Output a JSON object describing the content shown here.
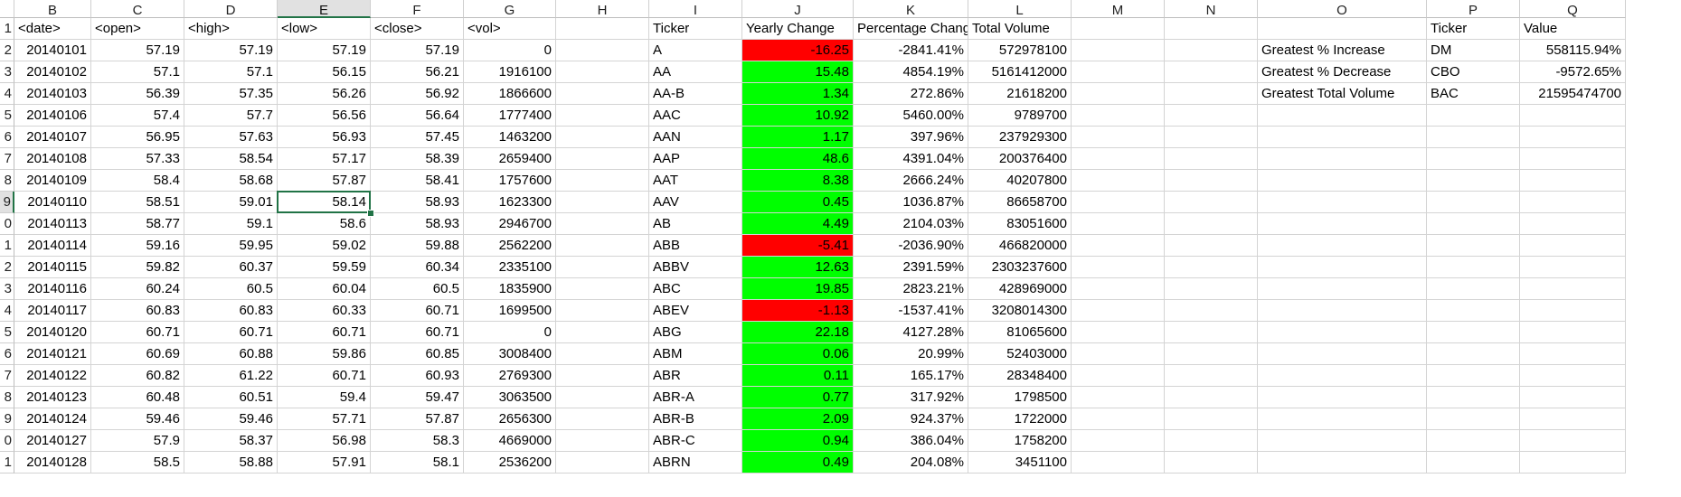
{
  "columns": [
    "B",
    "C",
    "D",
    "E",
    "F",
    "G",
    "H",
    "I",
    "J",
    "K",
    "L",
    "M",
    "N",
    "O",
    "P",
    "Q"
  ],
  "selected_column": "E",
  "selected_row": "9",
  "row_numbers": [
    "1",
    "2",
    "3",
    "4",
    "5",
    "6",
    "7",
    "8",
    "9",
    "0",
    "1",
    "2",
    "3",
    "4",
    "5",
    "6",
    "7",
    "8",
    "9",
    "0",
    "1"
  ],
  "header_row": [
    "<date>",
    "<open>",
    "<high>",
    "<low>",
    "<close>",
    "<vol>",
    "",
    "Ticker",
    "Yearly Change",
    "Percentage Change",
    "Total Volume",
    "",
    "",
    "",
    "Ticker",
    "Value"
  ],
  "stock_rows": [
    [
      "20140101",
      "57.19",
      "57.19",
      "57.19",
      "57.19",
      "0"
    ],
    [
      "20140102",
      "57.1",
      "57.1",
      "56.15",
      "56.21",
      "1916100"
    ],
    [
      "20140103",
      "56.39",
      "57.35",
      "56.26",
      "56.92",
      "1866600"
    ],
    [
      "20140106",
      "57.4",
      "57.7",
      "56.56",
      "56.64",
      "1777400"
    ],
    [
      "20140107",
      "56.95",
      "57.63",
      "56.93",
      "57.45",
      "1463200"
    ],
    [
      "20140108",
      "57.33",
      "58.54",
      "57.17",
      "58.39",
      "2659400"
    ],
    [
      "20140109",
      "58.4",
      "58.68",
      "57.87",
      "58.41",
      "1757600"
    ],
    [
      "20140110",
      "58.51",
      "59.01",
      "58.14",
      "58.93",
      "1623300"
    ],
    [
      "20140113",
      "58.77",
      "59.1",
      "58.6",
      "58.93",
      "2946700"
    ],
    [
      "20140114",
      "59.16",
      "59.95",
      "59.02",
      "59.88",
      "2562200"
    ],
    [
      "20140115",
      "59.82",
      "60.37",
      "59.59",
      "60.34",
      "2335100"
    ],
    [
      "20140116",
      "60.24",
      "60.5",
      "60.04",
      "60.5",
      "1835900"
    ],
    [
      "20140117",
      "60.83",
      "60.83",
      "60.33",
      "60.71",
      "1699500"
    ],
    [
      "20140120",
      "60.71",
      "60.71",
      "60.71",
      "60.71",
      "0"
    ],
    [
      "20140121",
      "60.69",
      "60.88",
      "59.86",
      "60.85",
      "3008400"
    ],
    [
      "20140122",
      "60.82",
      "61.22",
      "60.71",
      "60.93",
      "2769300"
    ],
    [
      "20140123",
      "60.48",
      "60.51",
      "59.4",
      "59.47",
      "3063500"
    ],
    [
      "20140124",
      "59.46",
      "59.46",
      "57.71",
      "57.87",
      "2656300"
    ],
    [
      "20140127",
      "57.9",
      "58.37",
      "56.98",
      "58.3",
      "4669000"
    ],
    [
      "20140128",
      "58.5",
      "58.88",
      "57.91",
      "58.1",
      "2536200"
    ]
  ],
  "summary_rows": [
    [
      "A",
      "-16.25",
      "-2841.41%",
      "572978100"
    ],
    [
      "AA",
      "15.48",
      "4854.19%",
      "5161412000"
    ],
    [
      "AA-B",
      "1.34",
      "272.86%",
      "21618200"
    ],
    [
      "AAC",
      "10.92",
      "5460.00%",
      "9789700"
    ],
    [
      "AAN",
      "1.17",
      "397.96%",
      "237929300"
    ],
    [
      "AAP",
      "48.6",
      "4391.04%",
      "200376400"
    ],
    [
      "AAT",
      "8.38",
      "2666.24%",
      "40207800"
    ],
    [
      "AAV",
      "0.45",
      "1036.87%",
      "86658700"
    ],
    [
      "AB",
      "4.49",
      "2104.03%",
      "83051600"
    ],
    [
      "ABB",
      "-5.41",
      "-2036.90%",
      "466820000"
    ],
    [
      "ABBV",
      "12.63",
      "2391.59%",
      "2303237600"
    ],
    [
      "ABC",
      "19.85",
      "2823.21%",
      "428969000"
    ],
    [
      "ABEV",
      "-1.13",
      "-1537.41%",
      "3208014300"
    ],
    [
      "ABG",
      "22.18",
      "4127.28%",
      "81065600"
    ],
    [
      "ABM",
      "0.06",
      "20.99%",
      "52403000"
    ],
    [
      "ABR",
      "0.11",
      "165.17%",
      "28348400"
    ],
    [
      "ABR-A",
      "0.77",
      "317.92%",
      "1798500"
    ],
    [
      "ABR-B",
      "2.09",
      "924.37%",
      "1722000"
    ],
    [
      "ABR-C",
      "0.94",
      "386.04%",
      "1758200"
    ],
    [
      "ABRN",
      "0.49",
      "204.08%",
      "3451100"
    ]
  ],
  "greatest": [
    [
      "Greatest % Increase",
      "DM",
      "558115.94%"
    ],
    [
      "Greatest % Decrease",
      "CBO",
      "-9572.65%"
    ],
    [
      "Greatest Total Volume",
      "BAC",
      "21595474700"
    ]
  ],
  "colors": {
    "negative_fill": "#ff0000",
    "positive_fill": "#00ff00",
    "selection_accent": "#217346"
  }
}
